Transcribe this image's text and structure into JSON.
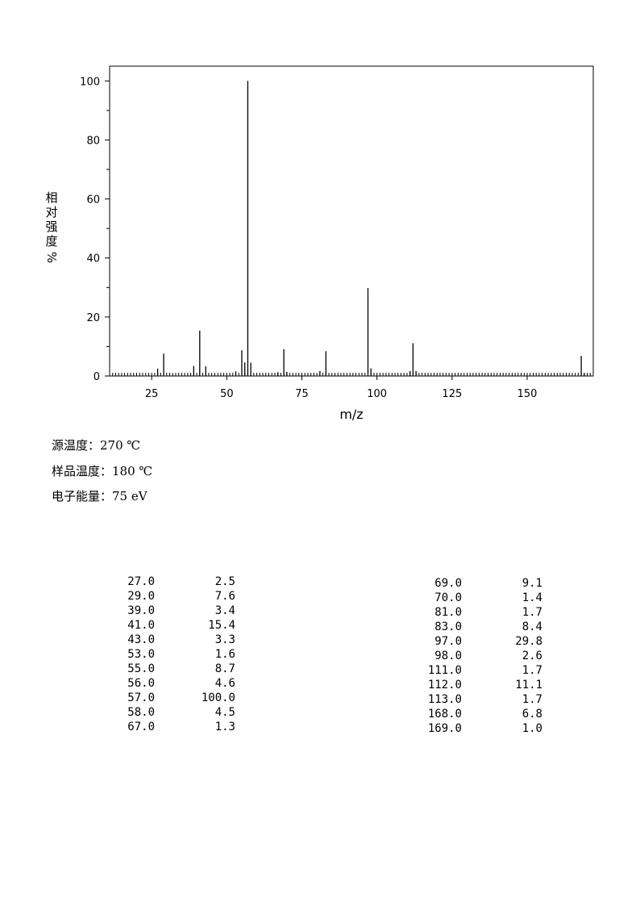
{
  "chart_data": {
    "type": "bar",
    "xlabel": "m/z",
    "ylabel": "相对强度%",
    "ylabel_chars": [
      "相",
      "对",
      "强",
      "度"
    ],
    "ylabel_unit": "%",
    "xlim": [
      11,
      172
    ],
    "ylim": [
      0,
      105
    ],
    "xticks": [
      25,
      50,
      75,
      100,
      125,
      150
    ],
    "yticks": [
      0,
      20,
      40,
      60,
      80,
      100
    ],
    "x": [
      27,
      29,
      39,
      41,
      43,
      53,
      55,
      56,
      57,
      58,
      67,
      69,
      70,
      81,
      83,
      97,
      98,
      111,
      112,
      113,
      168,
      169
    ],
    "values": [
      2.5,
      7.6,
      3.4,
      15.4,
      3.3,
      1.6,
      8.7,
      4.6,
      100.0,
      4.5,
      1.3,
      9.1,
      1.4,
      1.7,
      8.4,
      29.8,
      2.6,
      1.7,
      11.1,
      1.7,
      6.8,
      1.0
    ],
    "grid": false,
    "color": "#000000"
  },
  "conditions": [
    {
      "label": "源温度：",
      "value": "270 ℃"
    },
    {
      "label": "样品温度：",
      "value": "180 ℃"
    },
    {
      "label": "电子能量：",
      "value": "75 eV"
    }
  ],
  "peak_table": {
    "left": [
      [
        "27.0",
        "2.5"
      ],
      [
        "29.0",
        "7.6"
      ],
      [
        "39.0",
        "3.4"
      ],
      [
        "41.0",
        "15.4"
      ],
      [
        "43.0",
        "3.3"
      ],
      [
        "53.0",
        "1.6"
      ],
      [
        "55.0",
        "8.7"
      ],
      [
        "56.0",
        "4.6"
      ],
      [
        "57.0",
        "100.0"
      ],
      [
        "58.0",
        "4.5"
      ],
      [
        "67.0",
        "1.3"
      ]
    ],
    "right": [
      [
        "69.0",
        "9.1"
      ],
      [
        "70.0",
        "1.4"
      ],
      [
        "81.0",
        "1.7"
      ],
      [
        "83.0",
        "8.4"
      ],
      [
        "97.0",
        "29.8"
      ],
      [
        "98.0",
        "2.6"
      ],
      [
        "111.0",
        "1.7"
      ],
      [
        "112.0",
        "11.1"
      ],
      [
        "113.0",
        "1.7"
      ],
      [
        "168.0",
        "6.8"
      ],
      [
        "169.0",
        "1.0"
      ]
    ]
  }
}
